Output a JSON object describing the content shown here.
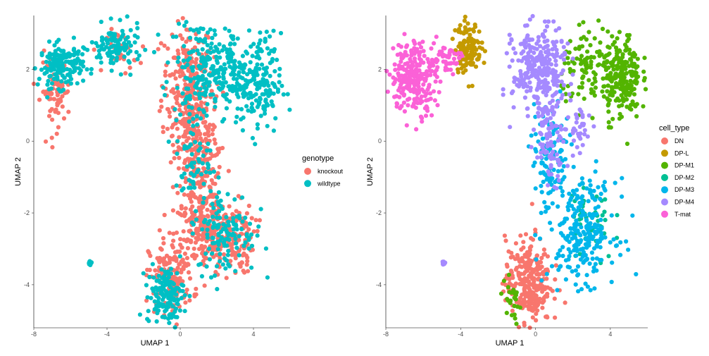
{
  "chart_data": [
    {
      "type": "scatter",
      "title": "",
      "xlabel": "UMAP 1",
      "ylabel": "UMAP 2",
      "xlim": [
        -8,
        6
      ],
      "ylim": [
        -5.2,
        3.5
      ],
      "xticks": [
        "-8",
        "-4",
        "0",
        "4"
      ],
      "yticks": [
        "2",
        "0",
        "-2",
        "-4"
      ],
      "grid": false,
      "legend_title": "genotype",
      "legend_position": "right",
      "series": [
        {
          "name": "knockout",
          "color": "#F8766D",
          "regions": [
            {
              "center": [
                0.4,
                1.6
              ],
              "spread": [
                0.7,
                0.9
              ],
              "weight": 70
            },
            {
              "center": [
                0.8,
                0.2
              ],
              "spread": [
                0.6,
                0.8
              ],
              "weight": 50
            },
            {
              "center": [
                1.2,
                -1.3
              ],
              "spread": [
                0.6,
                0.7
              ],
              "weight": 45
            },
            {
              "center": [
                1.5,
                -2.6
              ],
              "spread": [
                0.9,
                0.5
              ],
              "weight": 60
            },
            {
              "center": [
                2.8,
                -2.7
              ],
              "spread": [
                0.6,
                0.5
              ],
              "weight": 35
            },
            {
              "center": [
                -0.5,
                -3.8
              ],
              "spread": [
                0.6,
                0.5
              ],
              "weight": 45
            },
            {
              "center": [
                -6.8,
                1.4
              ],
              "spread": [
                0.4,
                0.5
              ],
              "weight": 25
            },
            {
              "center": [
                -3.2,
                2.5
              ],
              "spread": [
                0.4,
                0.3
              ],
              "weight": 10
            }
          ]
        },
        {
          "name": "wildtype",
          "color": "#00BFC4",
          "regions": [
            {
              "center": [
                -6.5,
                2.1
              ],
              "spread": [
                0.6,
                0.3
              ],
              "weight": 50
            },
            {
              "center": [
                -3.5,
                2.6
              ],
              "spread": [
                0.7,
                0.3
              ],
              "weight": 35
            },
            {
              "center": [
                1.2,
                2.2
              ],
              "spread": [
                0.8,
                0.6
              ],
              "weight": 45
            },
            {
              "center": [
                4.3,
                1.6
              ],
              "spread": [
                0.6,
                0.7
              ],
              "weight": 50
            },
            {
              "center": [
                2.8,
                1.8
              ],
              "spread": [
                0.8,
                0.5
              ],
              "weight": 35
            },
            {
              "center": [
                2.5,
                -2.5
              ],
              "spread": [
                0.8,
                0.6
              ],
              "weight": 40
            },
            {
              "center": [
                -0.8,
                -4.3
              ],
              "spread": [
                0.5,
                0.4
              ],
              "weight": 45
            },
            {
              "center": [
                0.6,
                -0.3
              ],
              "spread": [
                0.5,
                0.9
              ],
              "weight": 25
            },
            {
              "center": [
                -4.9,
                -3.4
              ],
              "spread": [
                0.04,
                0.03
              ],
              "weight": 4
            }
          ]
        }
      ]
    },
    {
      "type": "scatter",
      "title": "",
      "xlabel": "UMAP 1",
      "ylabel": "UMAP 2",
      "xlim": [
        -8,
        6
      ],
      "ylim": [
        -5.2,
        3.5
      ],
      "xticks": [
        "-8",
        "-4",
        "0",
        "4"
      ],
      "yticks": [
        "2",
        "0",
        "-2",
        "-4"
      ],
      "grid": false,
      "legend_title": "cell_type",
      "legend_position": "right",
      "series": [
        {
          "name": "DN",
          "color": "#F8766D",
          "regions": [
            {
              "center": [
                -0.4,
                -3.9
              ],
              "spread": [
                0.6,
                0.6
              ],
              "weight": 90
            }
          ]
        },
        {
          "name": "DP-L",
          "color": "#C49A00",
          "regions": [
            {
              "center": [
                -3.6,
                2.6
              ],
              "spread": [
                0.35,
                0.35
              ],
              "weight": 40
            }
          ]
        },
        {
          "name": "DP-M1",
          "color": "#53B400",
          "regions": [
            {
              "center": [
                4.6,
                1.8
              ],
              "spread": [
                0.5,
                0.6
              ],
              "weight": 70
            },
            {
              "center": [
                2.8,
                2.0
              ],
              "spread": [
                0.7,
                0.5
              ],
              "weight": 30
            },
            {
              "center": [
                -1.3,
                -4.5
              ],
              "spread": [
                0.3,
                0.3
              ],
              "weight": 8
            }
          ]
        },
        {
          "name": "DP-M2",
          "color": "#00C094",
          "regions": [
            {
              "center": [
                3.0,
                -2.3
              ],
              "spread": [
                0.6,
                0.6
              ],
              "weight": 15
            }
          ]
        },
        {
          "name": "DP-M3",
          "color": "#00B6EB",
          "regions": [
            {
              "center": [
                2.5,
                -2.5
              ],
              "spread": [
                0.9,
                0.7
              ],
              "weight": 75
            },
            {
              "center": [
                0.8,
                -0.5
              ],
              "spread": [
                0.5,
                0.8
              ],
              "weight": 35
            }
          ]
        },
        {
          "name": "DP-M4",
          "color": "#A58AFF",
          "regions": [
            {
              "center": [
                0.2,
                2.0
              ],
              "spread": [
                0.7,
                0.6
              ],
              "weight": 90
            },
            {
              "center": [
                0.8,
                0.3
              ],
              "spread": [
                0.4,
                0.7
              ],
              "weight": 30
            },
            {
              "center": [
                2.4,
                0.3
              ],
              "spread": [
                0.3,
                0.3
              ],
              "weight": 10
            },
            {
              "center": [
                -4.9,
                -3.4
              ],
              "spread": [
                0.04,
                0.03
              ],
              "weight": 4
            }
          ]
        },
        {
          "name": "T-mat",
          "color": "#FB61D7",
          "regions": [
            {
              "center": [
                -6.5,
                1.8
              ],
              "spread": [
                0.6,
                0.5
              ],
              "weight": 80
            },
            {
              "center": [
                -4.8,
                2.3
              ],
              "spread": [
                0.4,
                0.2
              ],
              "weight": 15
            }
          ]
        }
      ]
    }
  ]
}
